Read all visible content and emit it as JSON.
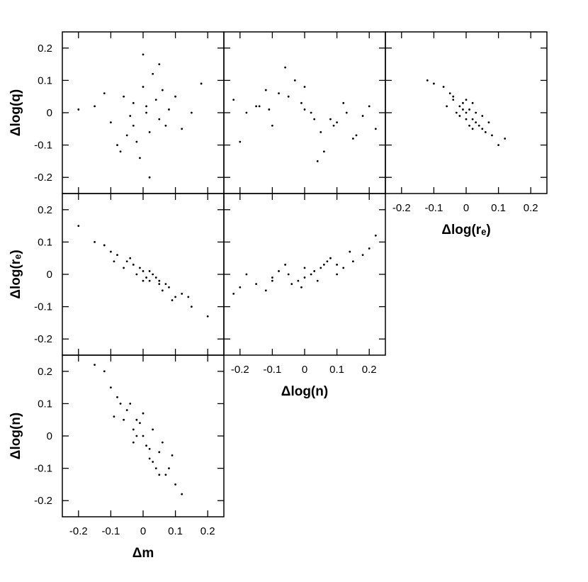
{
  "chart_data": [
    {
      "type": "scatter",
      "ylabel": "Δlog(q)",
      "color": "#000000",
      "x": [
        0.01,
        -0.03,
        0.05,
        -0.06,
        0.02,
        0.08,
        -0.1,
        0.0,
        -0.02,
        0.04,
        0.12,
        -0.15,
        0.06,
        -0.04,
        0.03,
        -0.08,
        0.1,
        -0.01,
        0.07,
        -0.12,
        0.15,
        0.0,
        -0.05,
        0.02,
        -0.2,
        0.18,
        0.05,
        -0.07,
        0.01,
        -0.03
      ],
      "values": [
        0.0,
        0.03,
        -0.02,
        0.05,
        -0.06,
        0.01,
        -0.03,
        0.08,
        -0.09,
        0.04,
        -0.05,
        0.02,
        0.07,
        -0.01,
        0.12,
        -0.1,
        0.05,
        -0.14,
        -0.04,
        0.06,
        0.0,
        0.18,
        -0.07,
        -0.2,
        0.01,
        0.09,
        0.15,
        -0.12,
        0.02,
        -0.04
      ],
      "xlim": [
        -0.25,
        0.25
      ],
      "ylim": [
        -0.25,
        0.25
      ],
      "xticks": [
        -0.2,
        -0.1,
        0,
        0.1,
        0.2
      ],
      "yticks": [
        -0.2,
        -0.1,
        0,
        0.1,
        0.2
      ]
    },
    {
      "type": "scatter",
      "color": "#000000",
      "x": [
        0.0,
        -0.1,
        0.12,
        -0.18,
        0.05,
        0.2,
        -0.05,
        0.08,
        -0.22,
        0.15,
        -0.12,
        0.02,
        0.1,
        -0.03,
        0.18,
        -0.15,
        0.06,
        -0.08,
        0.22,
        -0.01,
        0.03,
        -0.2,
        0.13,
        -0.06,
        0.09,
        -0.11,
        0.0,
        0.16,
        -0.14,
        0.04
      ],
      "values": [
        0.01,
        -0.04,
        0.03,
        0.0,
        -0.06,
        0.02,
        0.05,
        -0.02,
        0.04,
        -0.08,
        0.07,
        0.0,
        -0.03,
        0.1,
        -0.01,
        0.02,
        -0.12,
        0.06,
        -0.05,
        0.03,
        -0.02,
        -0.09,
        0.0,
        0.14,
        -0.04,
        0.01,
        0.08,
        -0.07,
        0.02,
        -0.15
      ],
      "xlim": [
        -0.25,
        0.25
      ],
      "ylim": [
        -0.25,
        0.25
      ],
      "xticks": [
        -0.2,
        -0.1,
        0,
        0.1,
        0.2
      ],
      "yticks": [
        -0.2,
        -0.1,
        0,
        0.1,
        0.2
      ]
    },
    {
      "type": "scatter",
      "xlabel": "Δlog(rₑ)",
      "color": "#000000",
      "x": [
        0.0,
        -0.02,
        0.03,
        -0.04,
        0.02,
        0.05,
        -0.01,
        0.01,
        -0.05,
        0.04,
        -0.03,
        0.06,
        0.0,
        -0.07,
        0.08,
        0.02,
        -0.02,
        0.1,
        -0.1,
        0.03,
        0.01,
        -0.04,
        0.05,
        -0.06,
        0.0,
        0.12,
        -0.12,
        0.07,
        -0.01,
        0.02
      ],
      "values": [
        0.0,
        0.02,
        -0.03,
        0.04,
        -0.02,
        -0.05,
        0.03,
        0.01,
        0.06,
        -0.04,
        0.0,
        -0.06,
        -0.02,
        0.08,
        -0.07,
        0.03,
        -0.01,
        -0.1,
        0.09,
        0.0,
        -0.04,
        0.05,
        -0.01,
        0.02,
        0.04,
        -0.08,
        0.1,
        -0.03,
        0.01,
        -0.05
      ],
      "xlim": [
        -0.25,
        0.25
      ],
      "ylim": [
        -0.25,
        0.25
      ],
      "xticks": [
        -0.2,
        -0.1,
        0,
        0.1,
        0.2
      ],
      "yticks": [
        -0.2,
        -0.1,
        0,
        0.1,
        0.2
      ]
    },
    {
      "type": "scatter",
      "ylabel": "Δlog(rₑ)",
      "color": "#000000",
      "x": [
        -0.2,
        -0.15,
        -0.1,
        -0.08,
        -0.05,
        -0.03,
        -0.02,
        0,
        0.01,
        0.02,
        0.03,
        0.05,
        0.06,
        0.08,
        0.1,
        0.12,
        0.15,
        0.2,
        -0.12,
        -0.06,
        0.0,
        0.04,
        0.07,
        -0.04,
        0.02,
        -0.01,
        0.09,
        0.14,
        -0.09,
        0.05
      ],
      "values": [
        0.15,
        0.1,
        0.07,
        0.06,
        0.04,
        0.03,
        0.0,
        0.01,
        -0.01,
        -0.02,
        0.0,
        -0.03,
        -0.05,
        -0.04,
        -0.07,
        -0.06,
        -0.1,
        -0.13,
        0.09,
        0.02,
        -0.02,
        -0.01,
        -0.03,
        0.05,
        0.01,
        0.02,
        -0.08,
        -0.07,
        0.04,
        -0.02
      ],
      "xlim": [
        -0.25,
        0.25
      ],
      "ylim": [
        -0.25,
        0.25
      ],
      "xticks": [
        -0.2,
        -0.1,
        0,
        0.1,
        0.2
      ],
      "yticks": [
        -0.2,
        -0.1,
        0,
        0.1,
        0.2
      ]
    },
    {
      "type": "scatter",
      "xlabel": "Δlog(n)",
      "color": "#000000",
      "x": [
        -0.2,
        -0.15,
        -0.1,
        -0.05,
        0.0,
        0.05,
        0.1,
        0.15,
        0.2,
        -0.12,
        -0.08,
        -0.02,
        0.02,
        0.06,
        0.12,
        0.18,
        -0.18,
        -0.04,
        0.03,
        0.08,
        0.22,
        -0.22,
        0.0,
        0.04,
        -0.06,
        0.1,
        0.14,
        -0.1,
        0.07,
        -0.01
      ],
      "values": [
        -0.04,
        -0.03,
        -0.02,
        0.0,
        -0.01,
        0.02,
        0.03,
        0.04,
        0.08,
        -0.05,
        0.01,
        -0.02,
        0.0,
        0.03,
        0.02,
        0.06,
        0.0,
        -0.03,
        0.01,
        0.05,
        0.12,
        -0.06,
        0.02,
        -0.02,
        0.03,
        0.0,
        0.07,
        -0.01,
        0.04,
        -0.04
      ],
      "xlim": [
        -0.25,
        0.25
      ],
      "ylim": [
        -0.25,
        0.25
      ],
      "xticks": [
        -0.2,
        -0.1,
        0,
        0.1,
        0.2
      ],
      "yticks": [
        -0.2,
        -0.1,
        0,
        0.1,
        0.2
      ]
    },
    {
      "type": "scatter",
      "xlabel": "Δm",
      "ylabel": "Δlog(n)",
      "color": "#000000",
      "x": [
        0.0,
        -0.02,
        0.02,
        -0.05,
        0.05,
        -0.03,
        0.03,
        -0.08,
        0.08,
        -0.1,
        0.06,
        -0.04,
        0.01,
        -0.01,
        0.04,
        -0.06,
        0.1,
        -0.12,
        0.07,
        -0.07,
        0.0,
        0.02,
        -0.02,
        0.05,
        -0.15,
        0.12,
        0.03,
        -0.09,
        0.09,
        -0.03
      ],
      "values": [
        0.0,
        0.05,
        -0.04,
        0.08,
        -0.05,
        0.02,
        -0.08,
        0.12,
        -0.1,
        0.15,
        -0.02,
        0.1,
        -0.03,
        0.04,
        -0.1,
        0.05,
        -0.15,
        0.2,
        -0.12,
        0.1,
        0.07,
        -0.07,
        0.0,
        -0.12,
        0.22,
        -0.18,
        0.02,
        0.06,
        -0.06,
        -0.02
      ],
      "xlim": [
        -0.25,
        0.25
      ],
      "ylim": [
        -0.25,
        0.25
      ],
      "xticks": [
        -0.2,
        -0.1,
        0,
        0.1,
        0.2
      ],
      "yticks": [
        -0.2,
        -0.1,
        0,
        0.1,
        0.2
      ]
    }
  ]
}
